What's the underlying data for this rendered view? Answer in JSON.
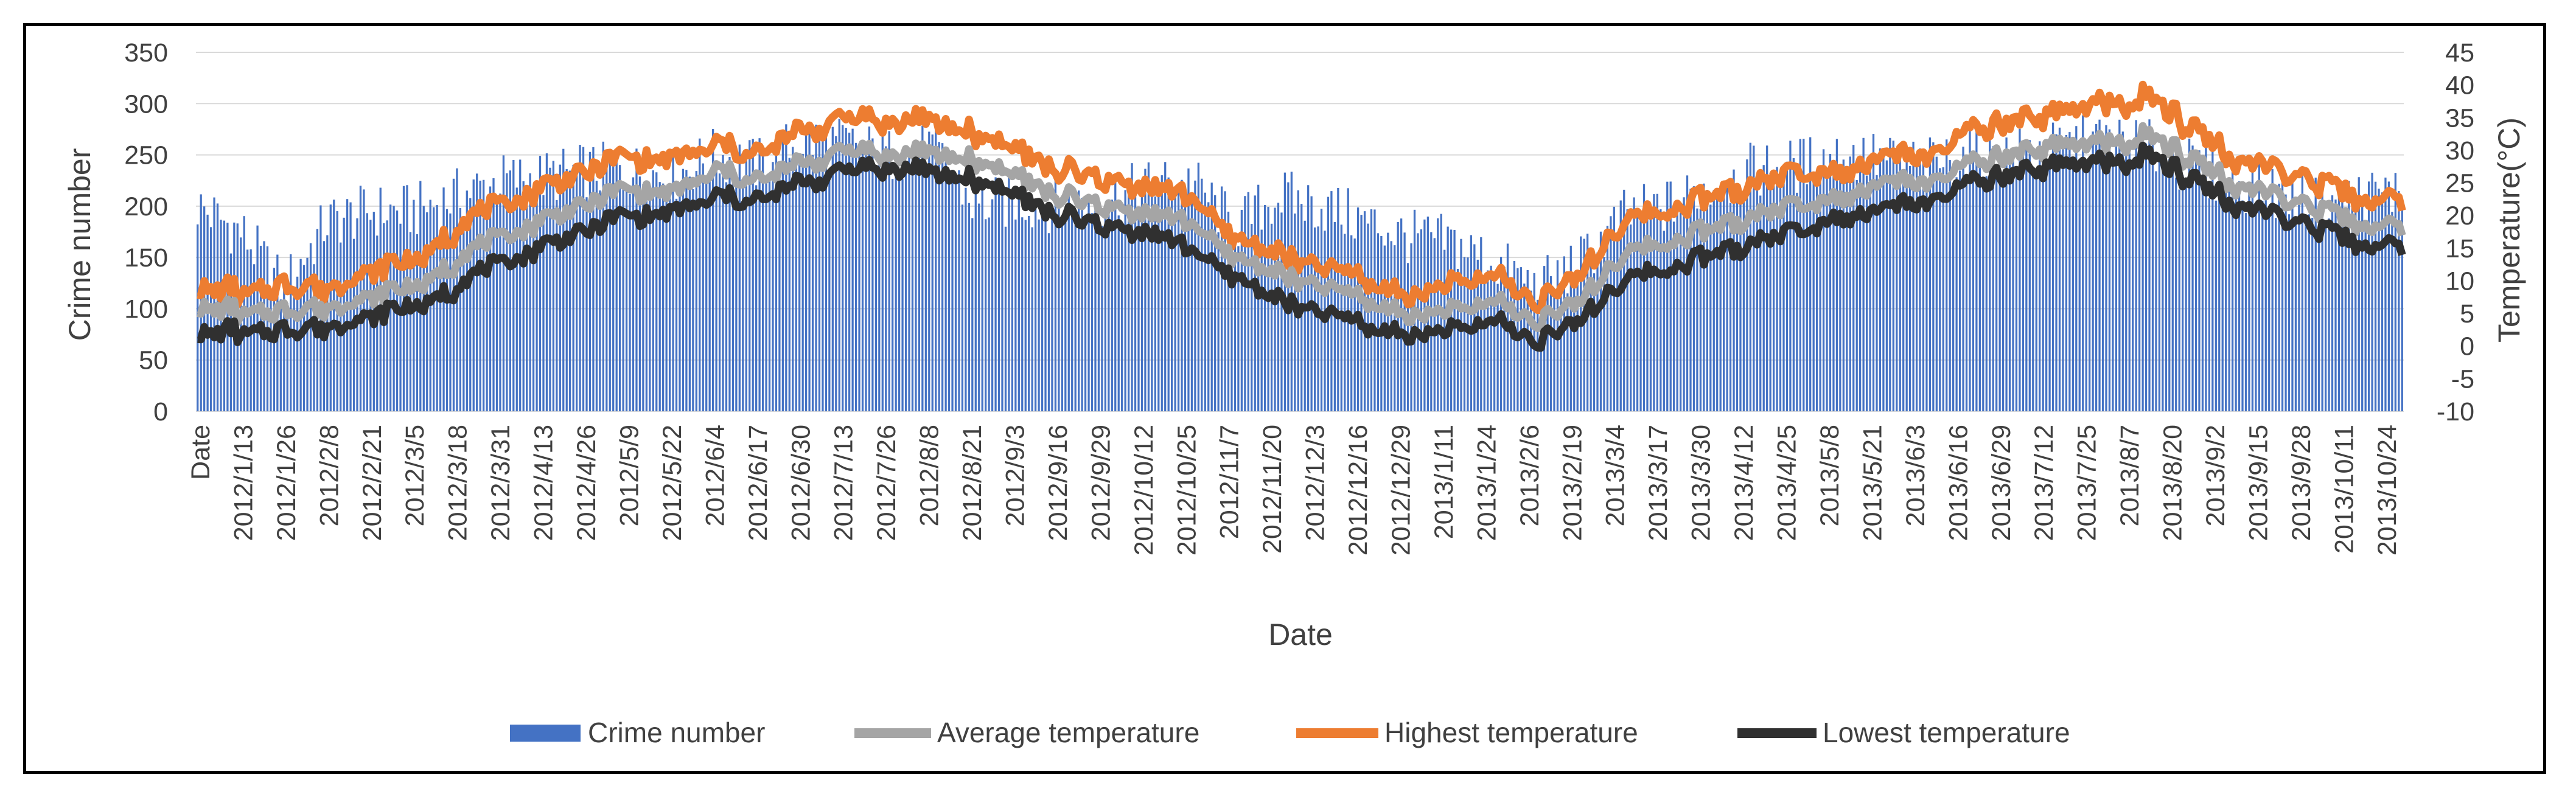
{
  "chart_data": {
    "type": "bar+line",
    "title": "",
    "xlabel": "Date",
    "ylabel": "Crime number",
    "y2label": "Temperature(°C)",
    "ylim": [
      0,
      350
    ],
    "y_ticks": [
      "350",
      "300",
      "250",
      "200",
      "150",
      "100",
      "50",
      "0"
    ],
    "y2lim": [
      -10,
      45
    ],
    "y2_ticks": [
      "45",
      "40",
      "35",
      "30",
      "25",
      "20",
      "15",
      "10",
      "5",
      "0",
      "-5",
      "-10"
    ],
    "x_tick_labels": [
      "Date",
      "2012/1/13",
      "2012/1/26",
      "2012/2/8",
      "2012/2/21",
      "2012/3/5",
      "2012/3/18",
      "2012/3/31",
      "2012/4/13",
      "2012/4/26",
      "2012/5/9",
      "2012/5/22",
      "2012/6/4",
      "2012/6/17",
      "2012/6/30",
      "2012/7/13",
      "2012/7/26",
      "2012/8/8",
      "2012/8/21",
      "2012/9/3",
      "2012/9/16",
      "2012/9/29",
      "2012/10/12",
      "2012/10/25",
      "2012/11/7",
      "2012/11/20",
      "2012/12/3",
      "2012/12/16",
      "2012/12/29",
      "2013/1/11",
      "2013/1/24",
      "2013/2/6",
      "2013/2/19",
      "2013/3/4",
      "2013/3/17",
      "2013/3/30",
      "2013/4/12",
      "2013/4/25",
      "2013/5/8",
      "2013/5/21",
      "2013/6/3",
      "2013/6/16",
      "2013/6/29",
      "2013/7/12",
      "2013/7/25",
      "2013/8/7",
      "2013/8/20",
      "2013/9/2",
      "2013/9/15",
      "2013/9/28",
      "2013/10/11",
      "2013/10/24"
    ],
    "anchor_step_days": 13,
    "series": [
      {
        "name": "Crime number",
        "axis": "left",
        "kind": "bar",
        "color": "#4472C4",
        "anchors": [
          200,
          175,
          120,
          185,
          195,
          195,
          210,
          225,
          228,
          235,
          235,
          230,
          250,
          240,
          265,
          260,
          250,
          255,
          200,
          205,
          200,
          205,
          220,
          225,
          180,
          210,
          200,
          185,
          170,
          165,
          145,
          120,
          145,
          190,
          200,
          220,
          235,
          240,
          250,
          245,
          240,
          250,
          250,
          255,
          265,
          260,
          240,
          225,
          215,
          205,
          210,
          215
        ]
      },
      {
        "name": "Average temperature",
        "axis": "right",
        "kind": "line",
        "color": "#A5A5A5",
        "anchors": [
          6,
          5,
          6,
          6,
          8,
          9,
          13,
          17,
          19,
          22,
          24,
          23,
          27,
          25,
          28,
          30,
          29,
          30,
          28,
          26,
          23,
          21,
          20,
          19,
          14,
          11,
          9,
          7,
          5,
          5,
          7,
          4,
          7,
          14,
          16,
          18,
          20,
          22,
          23,
          25,
          25,
          28,
          29,
          31,
          31,
          32,
          29,
          25,
          23,
          21,
          19,
          18
        ]
      },
      {
        "name": "Highest temperature",
        "axis": "right",
        "kind": "line",
        "color": "#ED7D31",
        "anchors": [
          9,
          8,
          10,
          9,
          12,
          13,
          18,
          22,
          24,
          27,
          29,
          28,
          31,
          29,
          33,
          35,
          34,
          35,
          32,
          30,
          27,
          25,
          24,
          23,
          17,
          14,
          12,
          10,
          8,
          9,
          11,
          7,
          11,
          19,
          21,
          23,
          25,
          27,
          27,
          29,
          29,
          33,
          34,
          36,
          37,
          38,
          34,
          29,
          27,
          25,
          23,
          22
        ]
      },
      {
        "name": "Lowest temperature",
        "axis": "right",
        "kind": "line",
        "color": "#303030",
        "anchors": [
          2,
          2,
          3,
          3,
          5,
          6,
          9,
          13,
          15,
          18,
          20,
          20,
          23,
          22,
          25,
          27,
          27,
          27,
          25,
          23,
          20,
          18,
          17,
          15,
          11,
          7,
          5,
          3,
          2,
          2,
          4,
          1,
          4,
          10,
          12,
          14,
          16,
          18,
          20,
          21,
          22,
          25,
          26,
          28,
          28,
          29,
          26,
          22,
          20,
          18,
          16,
          15
        ]
      }
    ],
    "legend": [
      "Crime number",
      "Average temperature",
      "Highest temperature",
      "Lowest temperature"
    ],
    "legend_position": "bottom"
  }
}
